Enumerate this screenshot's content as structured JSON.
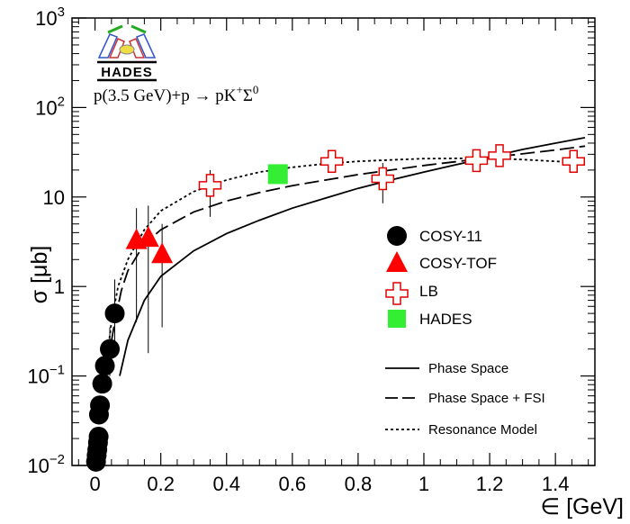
{
  "chart_data": {
    "type": "scatter",
    "title": "",
    "xlabel": "∈ [GeV]",
    "ylabel": "σ [μb]",
    "xlim": [
      -0.07,
      1.52
    ],
    "ylim": [
      0.01,
      1000
    ],
    "y_scale": "log",
    "x_ticks": [
      "0",
      "0.2",
      "0.4",
      "0.6",
      "0.8",
      "1",
      "1.2",
      "1.4"
    ],
    "x_tick_values": [
      0,
      0.2,
      0.4,
      0.6,
      0.8,
      1.0,
      1.2,
      1.4
    ],
    "y_ticks": [
      {
        "value": 0.01,
        "base": "10",
        "exp": "−2"
      },
      {
        "value": 0.1,
        "base": "10",
        "exp": "−1"
      },
      {
        "value": 1,
        "base": "1",
        "exp": ""
      },
      {
        "value": 10,
        "base": "10",
        "exp": ""
      },
      {
        "value": 100,
        "base": "10",
        "exp": "2"
      },
      {
        "value": 1000,
        "base": "10",
        "exp": "3"
      }
    ],
    "reaction": {
      "prefix": "p(3.5 GeV)+p → pK",
      "sup1": "+",
      "mid": "Σ",
      "sup2": "0"
    },
    "logo_text": "HADES",
    "legend_placement": "right",
    "series": [
      {
        "name": "COSY-11",
        "marker": "circle",
        "color": "#000000",
        "points": [
          {
            "x": 0.003,
            "y": 0.011
          },
          {
            "x": 0.005,
            "y": 0.013
          },
          {
            "x": 0.007,
            "y": 0.015
          },
          {
            "x": 0.009,
            "y": 0.018
          },
          {
            "x": 0.011,
            "y": 0.021
          },
          {
            "x": 0.012,
            "y": 0.037
          },
          {
            "x": 0.015,
            "y": 0.047
          },
          {
            "x": 0.022,
            "y": 0.082
          },
          {
            "x": 0.03,
            "y": 0.13
          },
          {
            "x": 0.045,
            "y": 0.2
          },
          {
            "x": 0.06,
            "y": 0.5
          }
        ],
        "errors": [
          {
            "x": 0.06,
            "low": 0.2,
            "high": 1.2
          },
          {
            "x": 0.045,
            "low": 0.1,
            "high": 0.35
          }
        ]
      },
      {
        "name": "COSY-TOF",
        "marker": "triangle",
        "color": "#ff0000",
        "points": [
          {
            "x": 0.126,
            "y": 3.3
          },
          {
            "x": 0.162,
            "y": 3.5
          },
          {
            "x": 0.204,
            "y": 2.3
          }
        ],
        "errors": [
          {
            "x": 0.126,
            "low": 0.4,
            "high": 7.5
          },
          {
            "x": 0.162,
            "low": 0.18,
            "high": 8.0
          },
          {
            "x": 0.204,
            "low": 0.35,
            "high": 5.0
          }
        ]
      },
      {
        "name": "LB",
        "marker": "open-cross",
        "color": "#e00000",
        "points": [
          {
            "x": 0.35,
            "y": 13.5
          },
          {
            "x": 0.72,
            "y": 25
          },
          {
            "x": 0.875,
            "y": 16
          },
          {
            "x": 1.16,
            "y": 25.5
          },
          {
            "x": 1.23,
            "y": 29
          },
          {
            "x": 1.455,
            "y": 25
          }
        ],
        "errors": [
          {
            "x": 0.35,
            "low": 6,
            "high": 20
          },
          {
            "x": 0.875,
            "low": 8.5,
            "high": 24
          }
        ]
      },
      {
        "name": "HADES",
        "marker": "square",
        "color": "#33ee33",
        "points": [
          {
            "x": 0.556,
            "y": 18
          }
        ],
        "errors": []
      }
    ],
    "curves": [
      {
        "name": "Phase Space",
        "style": "solid",
        "points": [
          {
            "x": 0.075,
            "y": 0.1
          },
          {
            "x": 0.1,
            "y": 0.25
          },
          {
            "x": 0.15,
            "y": 0.7
          },
          {
            "x": 0.2,
            "y": 1.3
          },
          {
            "x": 0.3,
            "y": 2.5
          },
          {
            "x": 0.4,
            "y": 3.9
          },
          {
            "x": 0.5,
            "y": 5.5
          },
          {
            "x": 0.6,
            "y": 7.5
          },
          {
            "x": 0.7,
            "y": 9.7
          },
          {
            "x": 0.8,
            "y": 12.5
          },
          {
            "x": 0.9,
            "y": 15.5
          },
          {
            "x": 1.0,
            "y": 19
          },
          {
            "x": 1.1,
            "y": 23
          },
          {
            "x": 1.2,
            "y": 28
          },
          {
            "x": 1.3,
            "y": 34
          },
          {
            "x": 1.4,
            "y": 40
          },
          {
            "x": 1.49,
            "y": 46
          }
        ]
      },
      {
        "name": "Phase Space + FSI",
        "style": "dashed",
        "points": [
          {
            "x": 0.04,
            "y": 0.15
          },
          {
            "x": 0.06,
            "y": 0.4
          },
          {
            "x": 0.08,
            "y": 0.9
          },
          {
            "x": 0.1,
            "y": 1.5
          },
          {
            "x": 0.15,
            "y": 3.0
          },
          {
            "x": 0.2,
            "y": 4.3
          },
          {
            "x": 0.3,
            "y": 6.8
          },
          {
            "x": 0.4,
            "y": 9.0
          },
          {
            "x": 0.5,
            "y": 11.2
          },
          {
            "x": 0.6,
            "y": 13.4
          },
          {
            "x": 0.8,
            "y": 17.8
          },
          {
            "x": 1.0,
            "y": 22.5
          },
          {
            "x": 1.2,
            "y": 27.5
          },
          {
            "x": 1.4,
            "y": 33.5
          },
          {
            "x": 1.49,
            "y": 37
          }
        ]
      },
      {
        "name": "Resonance Model",
        "style": "dotted",
        "points": [
          {
            "x": 0.03,
            "y": 0.1
          },
          {
            "x": 0.05,
            "y": 0.4
          },
          {
            "x": 0.07,
            "y": 1.0
          },
          {
            "x": 0.1,
            "y": 2.0
          },
          {
            "x": 0.15,
            "y": 4.3
          },
          {
            "x": 0.2,
            "y": 7.0
          },
          {
            "x": 0.3,
            "y": 11.5
          },
          {
            "x": 0.4,
            "y": 15.5
          },
          {
            "x": 0.5,
            "y": 19.0
          },
          {
            "x": 0.6,
            "y": 21.5
          },
          {
            "x": 0.7,
            "y": 23.5
          },
          {
            "x": 0.8,
            "y": 25.0
          },
          {
            "x": 0.9,
            "y": 26.0
          },
          {
            "x": 1.0,
            "y": 26.8
          },
          {
            "x": 1.1,
            "y": 27.0
          },
          {
            "x": 1.2,
            "y": 27.0
          },
          {
            "x": 1.3,
            "y": 26.2
          },
          {
            "x": 1.4,
            "y": 25.0
          },
          {
            "x": 1.49,
            "y": 24.0
          }
        ]
      }
    ]
  }
}
